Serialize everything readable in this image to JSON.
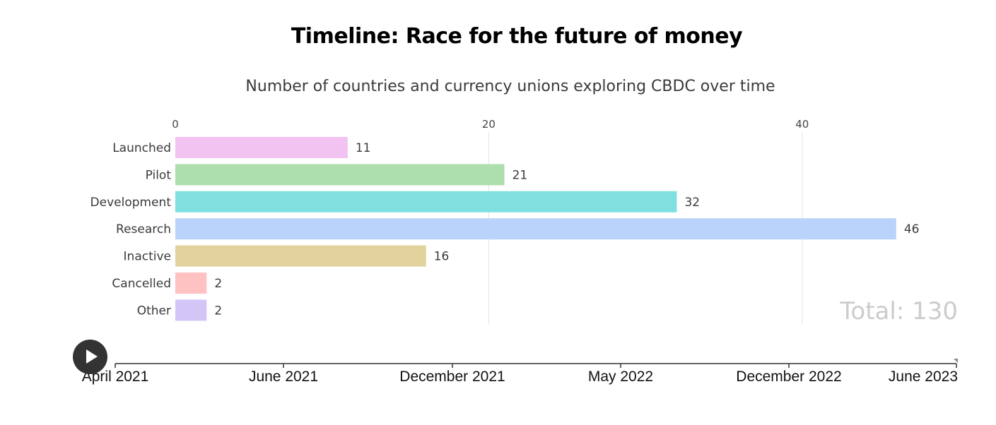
{
  "title": "Timeline: Race for the future of money",
  "subtitle": "Number of countries and currency unions exploring CBDC over time",
  "chart_data": {
    "type": "bar",
    "orientation": "horizontal",
    "title": "Timeline: Race for the future of money",
    "subtitle": "Number of countries and currency unions exploring CBDC over time",
    "categories": [
      "Launched",
      "Pilot",
      "Development",
      "Research",
      "Inactive",
      "Cancelled",
      "Other"
    ],
    "values": [
      11,
      21,
      32,
      46,
      16,
      2,
      2
    ],
    "colors": [
      "#f2c2f1",
      "#addfae",
      "#80e0df",
      "#b9d3fa",
      "#e1d29e",
      "#ffc2c3",
      "#d2c6f6"
    ],
    "xlim": [
      0,
      46
    ],
    "xticks": [
      "0",
      "20",
      "40"
    ],
    "xtick_values": [
      0,
      20,
      40
    ],
    "grid": true,
    "xlabel": "",
    "ylabel": "",
    "total_label": "Total: 130"
  },
  "timeline": {
    "labels": [
      "April 2021",
      "June 2021",
      "December 2021",
      "May 2022",
      "December 2022",
      "June 2023"
    ],
    "current": "June 2023",
    "play_icon": "play-icon"
  },
  "colors": {
    "grid": "#e3e3e3",
    "timeline_axis": "#333333",
    "play_button": "#333333"
  }
}
